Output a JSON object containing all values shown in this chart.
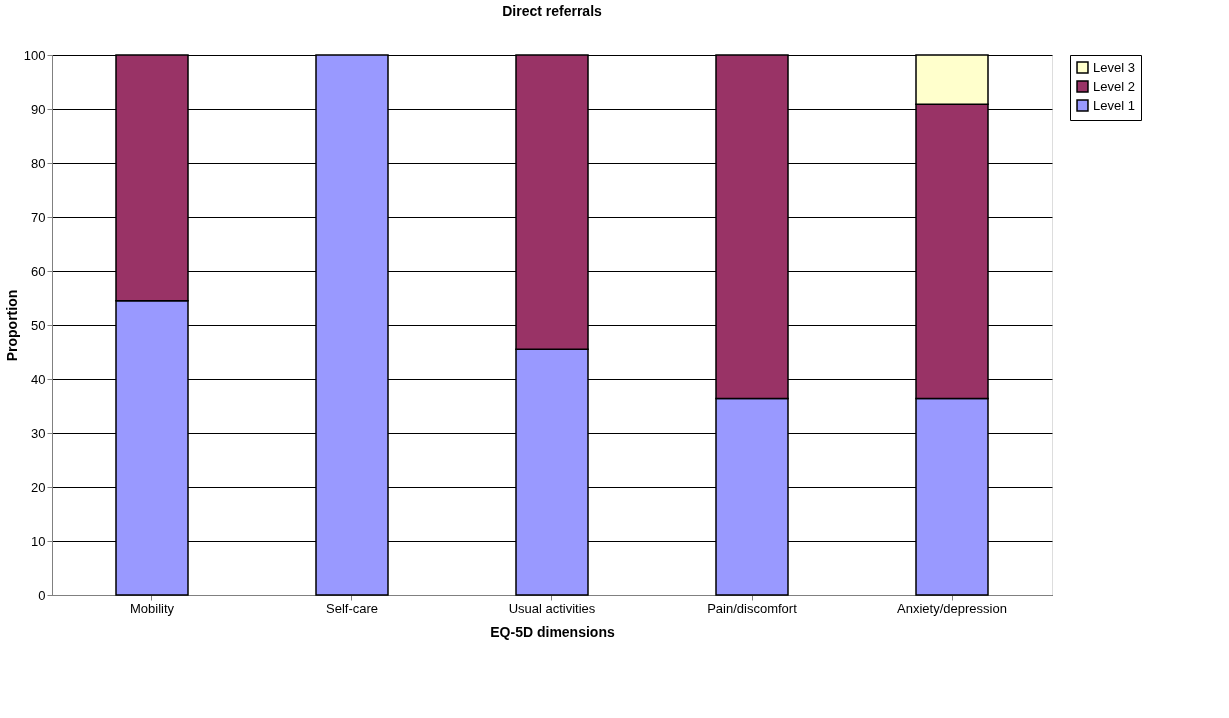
{
  "chart_data": {
    "type": "bar",
    "title": "Direct referrals",
    "xlabel": "EQ-5D dimensions",
    "ylabel": "Proportion",
    "categories": [
      "Mobility",
      "Self-care",
      "Usual activities",
      "Pain/discomfort",
      "Anxiety/depression"
    ],
    "stacked": true,
    "series": [
      {
        "name": "Level 1",
        "color": "#9999ff",
        "values": [
          54.5,
          100,
          45.5,
          36.4,
          36.4
        ]
      },
      {
        "name": "Level 2",
        "color": "#993366",
        "values": [
          45.5,
          null,
          54.5,
          63.6,
          54.5
        ]
      },
      {
        "name": "Level 3",
        "color": "#ffffcc",
        "values": [
          null,
          null,
          null,
          null,
          9.1
        ]
      }
    ],
    "ylim": [
      0,
      100
    ],
    "yticks": [
      0,
      10,
      20,
      30,
      40,
      50,
      60,
      70,
      80,
      90,
      100
    ],
    "grid": "y",
    "legend": "right"
  }
}
